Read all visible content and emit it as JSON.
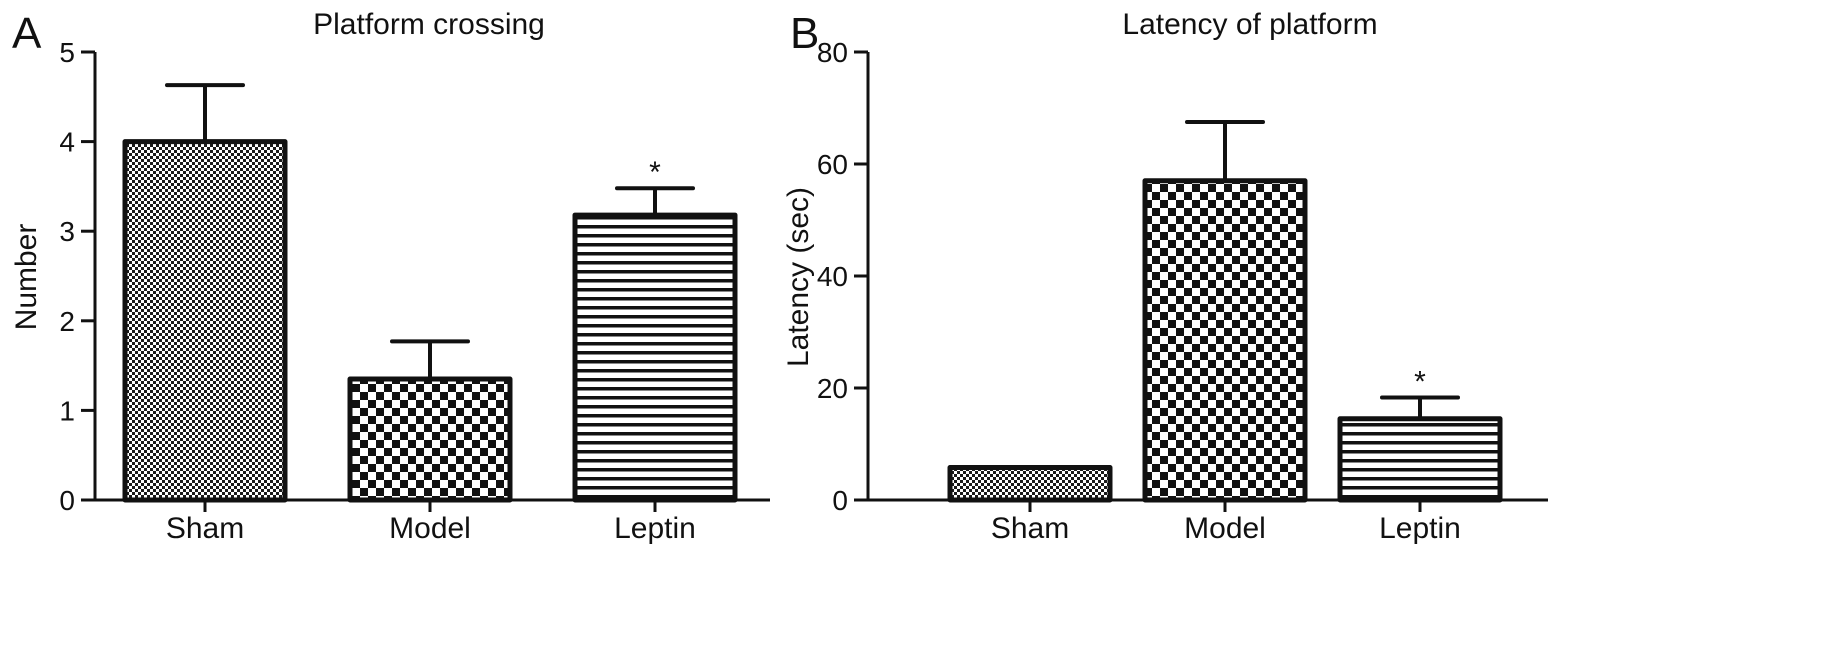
{
  "chart_data": [
    {
      "type": "bar",
      "panel_label": "A",
      "title": "Platform crossing",
      "xlabel": "",
      "ylabel": "Number",
      "ylim": [
        0,
        5
      ],
      "yticks": [
        0,
        1,
        2,
        3,
        4,
        5
      ],
      "categories": [
        "Sham",
        "Model",
        "Leptin"
      ],
      "values": [
        4.0,
        1.35,
        3.18
      ],
      "errors": [
        0.63,
        0.42,
        0.3
      ],
      "significance": [
        "",
        "",
        "*"
      ],
      "patterns": [
        "fine-check",
        "coarse-check",
        "horizontal-lines"
      ],
      "grid": false
    },
    {
      "type": "bar",
      "panel_label": "B",
      "title": "Latency of platform",
      "xlabel": "",
      "ylabel": "Latency (sec)",
      "ylim": [
        0,
        80
      ],
      "yticks": [
        0,
        20,
        40,
        60,
        80
      ],
      "categories": [
        "Sham",
        "Model",
        "Leptin"
      ],
      "values": [
        5.8,
        57.0,
        14.5
      ],
      "errors": [
        0,
        10.5,
        3.8
      ],
      "significance": [
        "",
        "",
        "*"
      ],
      "patterns": [
        "fine-check",
        "coarse-check",
        "horizontal-lines"
      ],
      "grid": false
    }
  ]
}
